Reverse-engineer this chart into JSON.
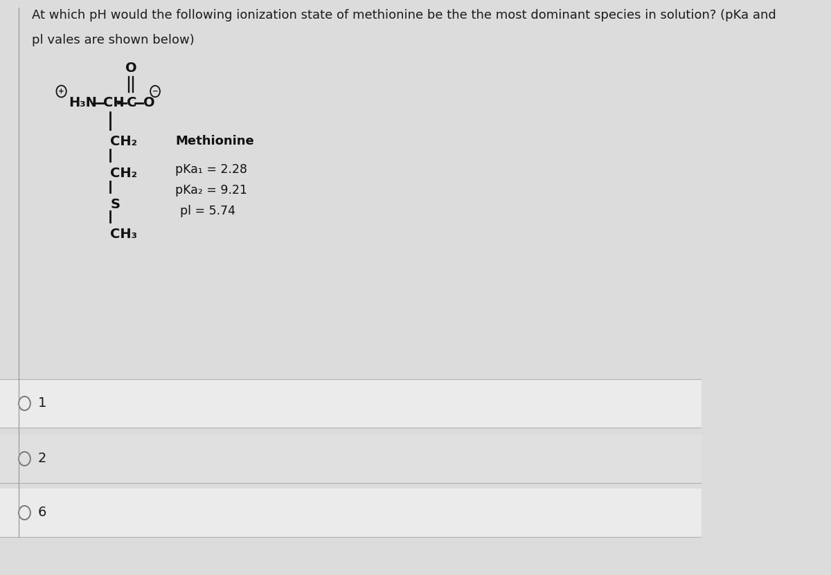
{
  "title_line1": "At which pH would the following ionization state of methionine be the the most dominant species in solution? (pKa and",
  "title_line2": "pl vales are shown below)",
  "compound_name": "Methionine",
  "pka1_label": "pKa₁ = 2.28",
  "pka2_label": "pKa₂ = 9.21",
  "pl_label": "pl = 5.74",
  "options": [
    "1",
    "2",
    "6"
  ],
  "background_color": "#dcdcdc",
  "text_color": "#1a1a1a",
  "title_fontsize": 13.0,
  "body_fontsize": 13,
  "option_fontsize": 14,
  "structure_color": "#111111",
  "separator_color": "#b0b0b0",
  "option_bg1": "#ebebeb",
  "option_bg2": "#e0e0e0",
  "left_border_color": "#999999"
}
